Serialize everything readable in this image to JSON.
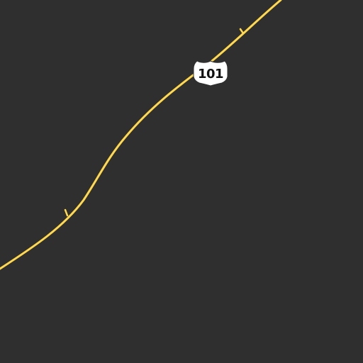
{
  "map": {
    "background_color": "#2f2f2f",
    "road_color": "#ffd84d",
    "highway": {
      "route_number": "101",
      "shield_type": "us-route-shield-icon",
      "shield_fill": "#ffffff",
      "shield_text_color": "#111111"
    }
  }
}
